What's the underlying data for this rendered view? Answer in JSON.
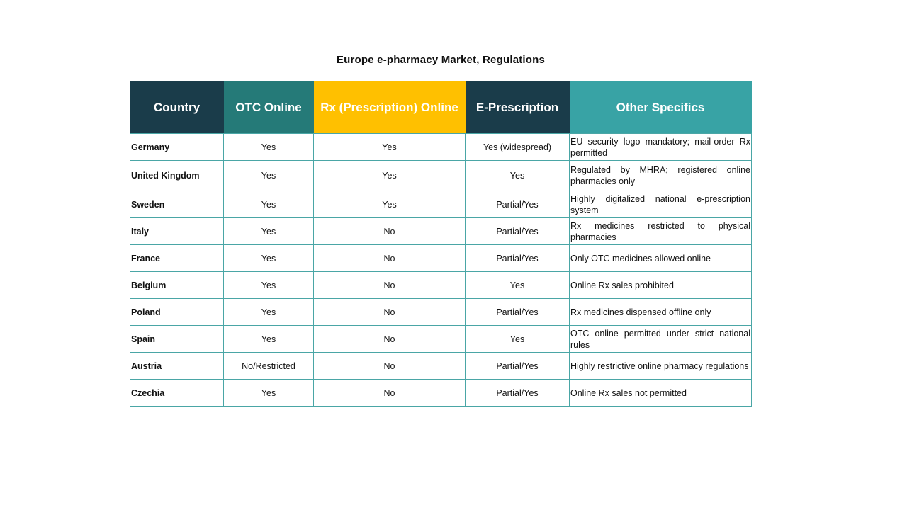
{
  "title": "Europe e-pharmacy Market, Regulations",
  "colors": {
    "header_dark": "#1a3c4a",
    "header_teal": "#257a78",
    "header_yellow": "#ffc000",
    "header_light_teal": "#38a3a5",
    "border": "#4aa6a6"
  },
  "columns": [
    "Country",
    "OTC Online",
    "Rx (Prescription) Online",
    "E-Prescription",
    "Other Specifics"
  ],
  "rows": [
    [
      "Germany",
      "Yes",
      "Yes",
      "Yes (widespread)",
      "EU security logo mandatory; mail-order Rx permitted"
    ],
    [
      "United Kingdom",
      "Yes",
      "Yes",
      "Yes",
      "Regulated by MHRA; registered online pharmacies only"
    ],
    [
      "Sweden",
      "Yes",
      "Yes",
      "Partial/Yes",
      "Highly digitalized national e-prescription system"
    ],
    [
      "Italy",
      "Yes",
      "No",
      "Partial/Yes",
      "Rx medicines restricted to physical pharmacies"
    ],
    [
      "France",
      "Yes",
      "No",
      "Partial/Yes",
      "Only OTC medicines allowed online"
    ],
    [
      "Belgium",
      "Yes",
      "No",
      "Yes",
      "Online Rx sales prohibited"
    ],
    [
      "Poland",
      "Yes",
      "No",
      "Partial/Yes",
      "Rx medicines dispensed offline only"
    ],
    [
      "Spain",
      "Yes",
      "No",
      "Yes",
      "OTC online permitted under strict national rules"
    ],
    [
      "Austria",
      "No/Restricted",
      "No",
      "Partial/Yes",
      "Highly restrictive online pharmacy regulations"
    ],
    [
      "Czechia",
      "Yes",
      "No",
      "Partial/Yes",
      "Online Rx sales not permitted"
    ]
  ]
}
